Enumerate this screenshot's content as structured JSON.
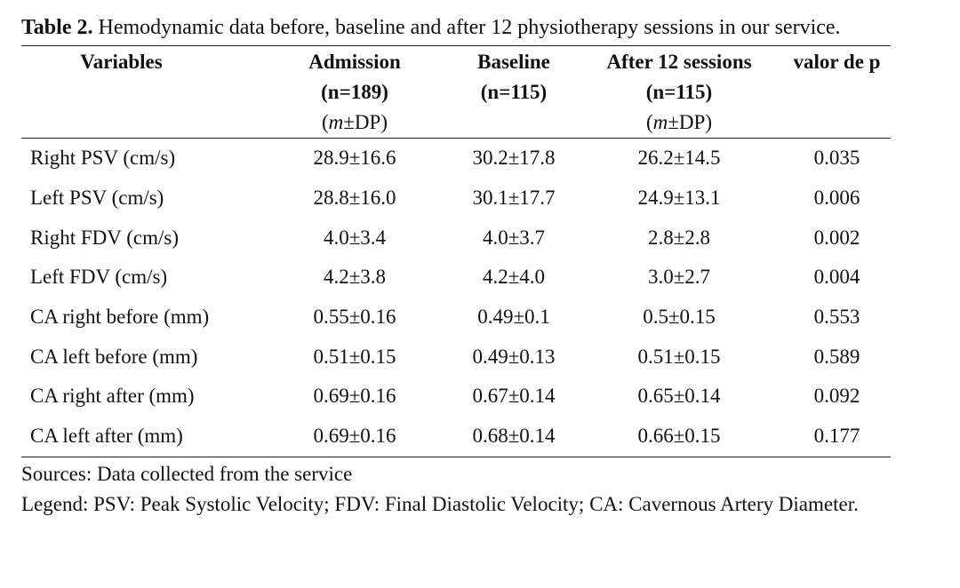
{
  "caption": {
    "lead": "Table 2.",
    "text": "Hemodynamic data before, baseline and after 12 physiotherapy sessions in our service."
  },
  "table": {
    "headers": [
      {
        "line1": "Variables",
        "line2": "",
        "sub_prefix": "",
        "sub_italic": "",
        "sub_suffix": ""
      },
      {
        "line1": "Admission",
        "line2": "(n=189)",
        "sub_prefix": "(",
        "sub_italic": "m",
        "sub_suffix": "±DP)"
      },
      {
        "line1": "Baseline",
        "line2": "(n=115)",
        "sub_prefix": "",
        "sub_italic": "",
        "sub_suffix": ""
      },
      {
        "line1": "After 12 sessions",
        "line2": "(n=115)",
        "sub_prefix": "(",
        "sub_italic": "m",
        "sub_suffix": "±DP)"
      },
      {
        "line1": "valor de p",
        "line2": "",
        "sub_prefix": "",
        "sub_italic": "",
        "sub_suffix": ""
      }
    ],
    "rows": [
      [
        "Right PSV (cm/s)",
        "28.9±16.6",
        "30.2±17.8",
        "26.2±14.5",
        "0.035"
      ],
      [
        "Left PSV (cm/s)",
        "28.8±16.0",
        "30.1±17.7",
        "24.9±13.1",
        "0.006"
      ],
      [
        "Right FDV (cm/s)",
        "4.0±3.4",
        "4.0±3.7",
        "2.8±2.8",
        "0.002"
      ],
      [
        "Left FDV (cm/s)",
        "4.2±3.8",
        "4.2±4.0",
        "3.0±2.7",
        "0.004"
      ],
      [
        "CA right before (mm)",
        "0.55±0.16",
        "0.49±0.1",
        "0.5±0.15",
        "0.553"
      ],
      [
        "CA left before (mm)",
        "0.51±0.15",
        "0.49±0.13",
        "0.51±0.15",
        "0.589"
      ],
      [
        "CA right after (mm)",
        "0.69±0.16",
        "0.67±0.14",
        "0.65±0.14",
        "0.092"
      ],
      [
        "CA left after (mm)",
        "0.69±0.16",
        "0.68±0.14",
        "0.66±0.15",
        "0.177"
      ]
    ]
  },
  "notes": {
    "sources": "Sources: Data collected from the service",
    "legend": "Legend: PSV: Peak Systolic Velocity; FDV: Final Diastolic Velocity; CA: Cavernous Artery Diameter."
  }
}
